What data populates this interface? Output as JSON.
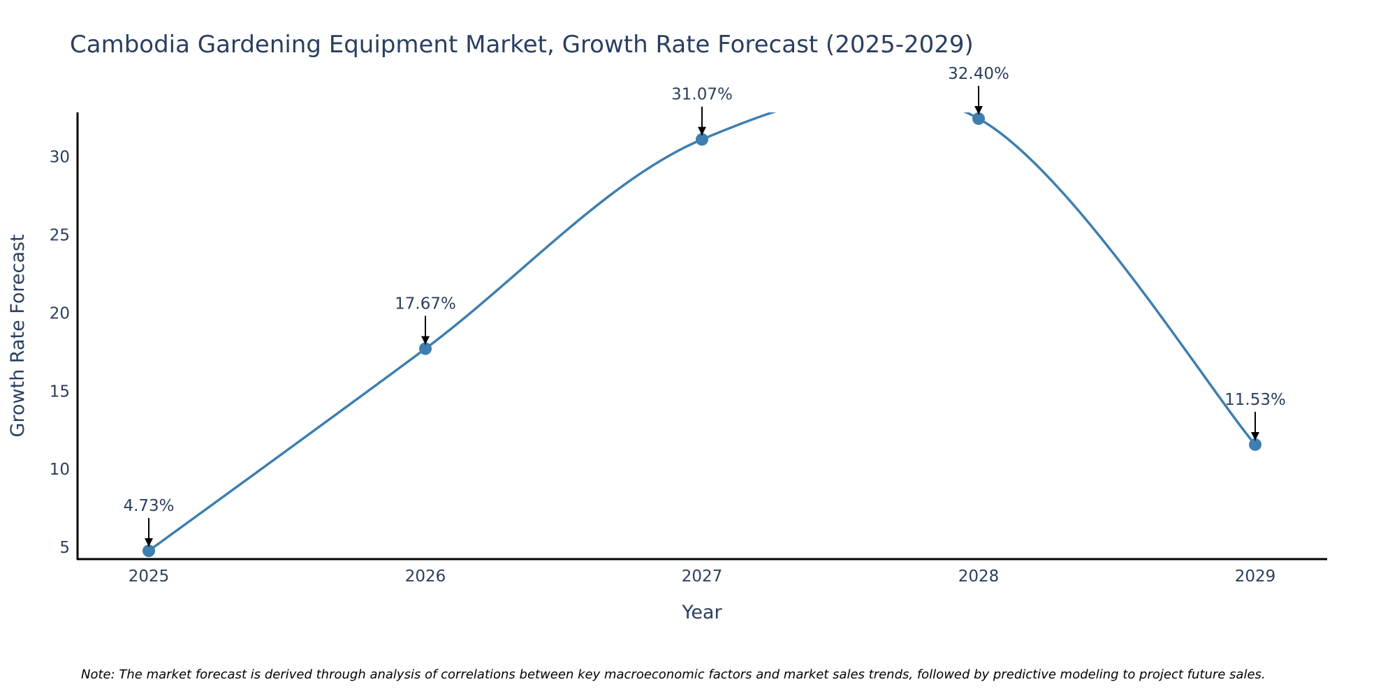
{
  "chart_data": {
    "type": "line",
    "title": "Cambodia Gardening Equipment Market, Growth Rate Forecast (2025-2029)",
    "xlabel": "Year",
    "ylabel": "Growth Rate Forecast",
    "x": [
      "2025",
      "2026",
      "2027",
      "2028",
      "2029"
    ],
    "values": [
      4.73,
      17.67,
      31.07,
      32.4,
      11.53
    ],
    "data_labels": [
      "4.73%",
      "17.67%",
      "31.07%",
      "32.40%",
      "11.53%"
    ],
    "y_ticks": [
      5,
      10,
      15,
      20,
      25,
      30
    ],
    "ylim": [
      4.2,
      32.8
    ],
    "grid": false,
    "legend": "none",
    "line_color": "#3d7fb0",
    "marker_color": "#3d7fb0",
    "arrow_color": "#000000",
    "note": "Note: The market forecast is derived through analysis of correlations between key macroeconomic factors and market sales trends, followed by predictive modeling to project future sales."
  }
}
